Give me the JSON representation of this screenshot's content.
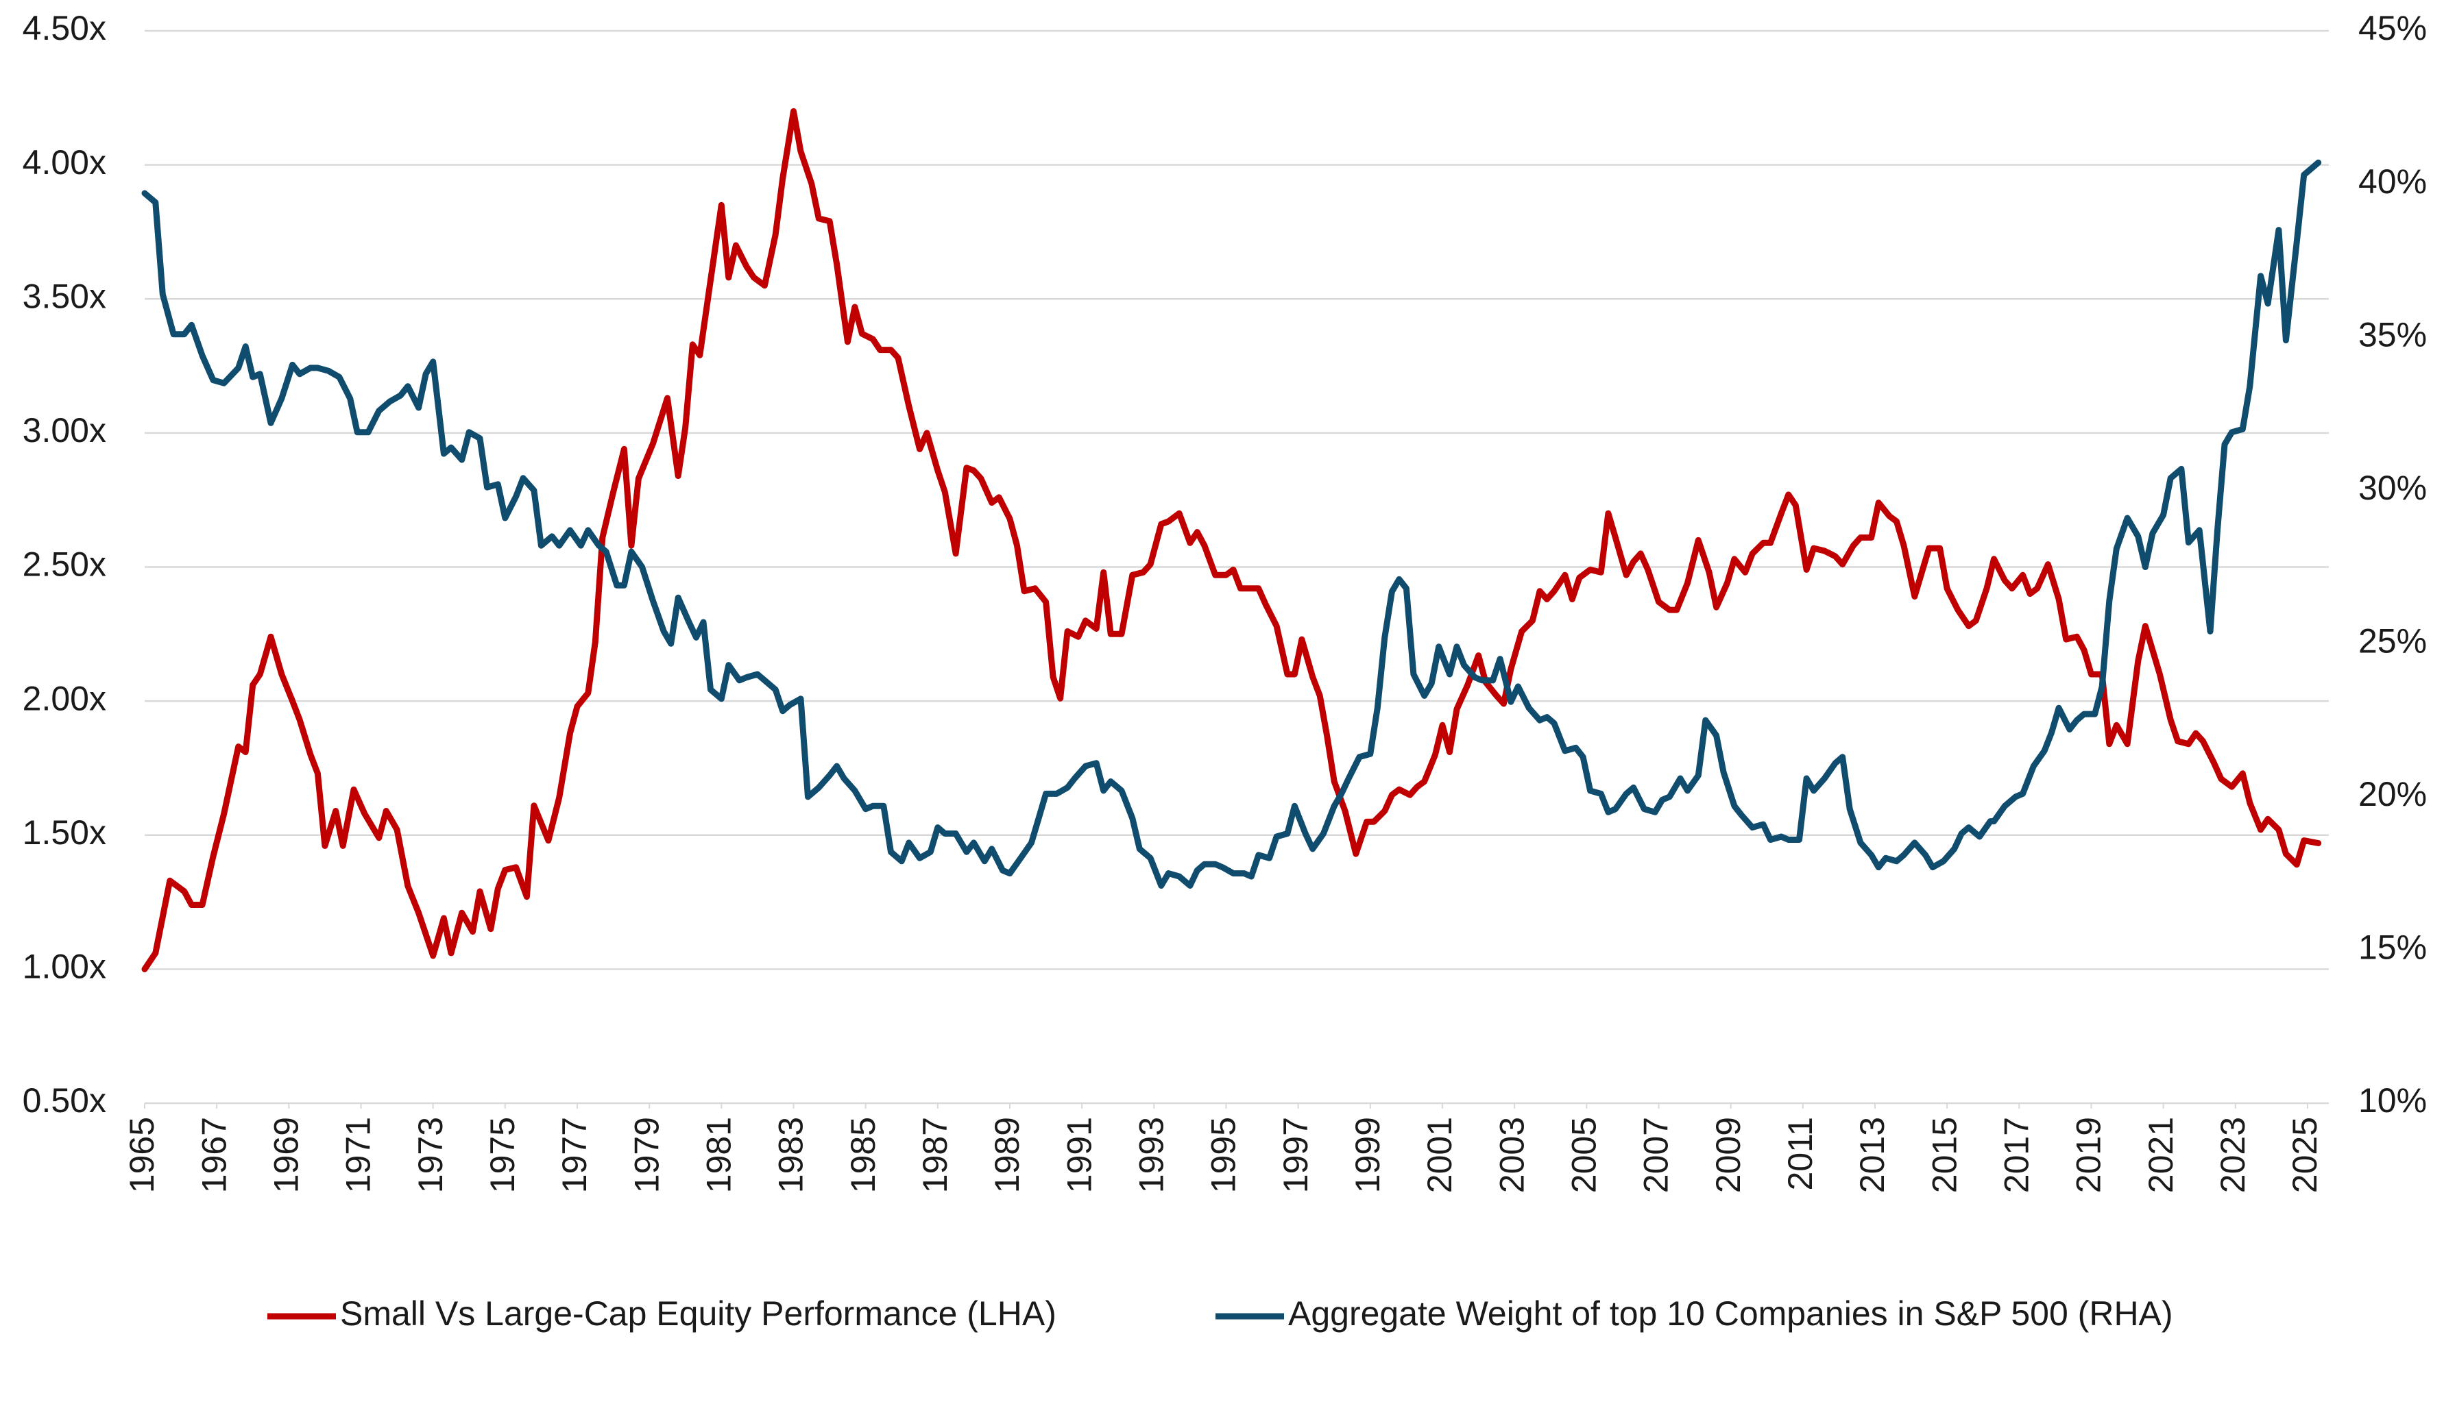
{
  "chart_data": {
    "type": "line",
    "legend": "bottom",
    "grid": true,
    "xlim": [
      1965,
      2025.4
    ],
    "xticks": [
      1965,
      1967,
      1969,
      1971,
      1973,
      1975,
      1977,
      1979,
      1981,
      1983,
      1985,
      1987,
      1989,
      1991,
      1993,
      1995,
      1997,
      1999,
      2001,
      2003,
      2005,
      2007,
      2009,
      2011,
      2013,
      2015,
      2017,
      2019,
      2021,
      2023,
      2025
    ],
    "ylim": [
      0.5,
      4.5
    ],
    "yticks": [
      {
        "value": 0.5,
        "label": "0.50x"
      },
      {
        "value": 1,
        "label": "1.00x"
      },
      {
        "value": 1.5,
        "label": "1.50x"
      },
      {
        "value": 2,
        "label": "2.00x"
      },
      {
        "value": 2.5,
        "label": "2.50x"
      },
      {
        "value": 3,
        "label": "3.00x"
      },
      {
        "value": 3.5,
        "label": "3.50x"
      },
      {
        "value": 4,
        "label": "4.00x"
      },
      {
        "value": 4.5,
        "label": "4.50x"
      }
    ],
    "y2lim": [
      10,
      45
    ],
    "y2ticks": [
      {
        "value": 10,
        "label": "10%"
      },
      {
        "value": 15,
        "label": "15%"
      },
      {
        "value": 20,
        "label": "20%"
      },
      {
        "value": 25,
        "label": "25%"
      },
      {
        "value": 30,
        "label": "30%"
      },
      {
        "value": 35,
        "label": "35%"
      },
      {
        "value": 40,
        "label": "40%"
      },
      {
        "value": 45,
        "label": "45%"
      }
    ],
    "series": [
      {
        "name": "Small Vs Large-Cap Equity Performance (LHA)",
        "color": "#c00000",
        "axis": "y",
        "x": [
          1965.0,
          1965.3,
          1965.7,
          1966.1,
          1966.3,
          1966.6,
          1966.9,
          1967.2,
          1967.6,
          1967.8,
          1968.0,
          1968.2,
          1968.5,
          1968.8,
          1969.1,
          1969.3,
          1969.6,
          1969.8,
          1970.0,
          1970.3,
          1970.5,
          1970.8,
          1971.1,
          1971.5,
          1971.7,
          1972.0,
          1972.3,
          1972.6,
          1973.0,
          1973.3,
          1973.5,
          1973.8,
          1974.1,
          1974.3,
          1974.6,
          1974.8,
          1975.0,
          1975.3,
          1975.6,
          1975.8,
          1976.2,
          1976.5,
          1976.8,
          1977.0,
          1977.3,
          1977.5,
          1977.7,
          1978.0,
          1978.3,
          1978.5,
          1978.7,
          1979.1,
          1979.5,
          1979.8,
          1980.0,
          1980.2,
          1980.4,
          1980.7,
          1981.0,
          1981.2,
          1981.4,
          1981.7,
          1981.9,
          1982.2,
          1982.5,
          1982.7,
          1983.0,
          1983.2,
          1983.5,
          1983.7,
          1984.0,
          1984.2,
          1984.5,
          1984.7,
          1984.9,
          1985.2,
          1985.4,
          1985.7,
          1985.9,
          1986.2,
          1986.5,
          1986.7,
          1987.0,
          1987.2,
          1987.5,
          1987.8,
          1988.0,
          1988.2,
          1988.5,
          1988.7,
          1989.0,
          1989.2,
          1989.4,
          1989.7,
          1990.0,
          1990.2,
          1990.4,
          1990.6,
          1990.9,
          1991.1,
          1991.4,
          1991.6,
          1991.8,
          1992.1,
          1992.4,
          1992.7,
          1992.9,
          1993.2,
          1993.4,
          1993.7,
          1994.0,
          1994.2,
          1994.4,
          1994.7,
          1995.0,
          1995.2,
          1995.4,
          1995.7,
          1995.9,
          1996.1,
          1996.4,
          1996.7,
          1996.9,
          1997.1,
          1997.4,
          1997.6,
          1997.8,
          1998.0,
          1998.3,
          1998.6,
          1998.9,
          1999.1,
          1999.4,
          1999.6,
          1999.8,
          2000.1,
          2000.3,
          2000.5,
          2000.8,
          2001.0,
          2001.2,
          2001.4,
          2001.7,
          2002.0,
          2002.2,
          2002.5,
          2002.7,
          2002.9,
          2003.2,
          2003.5,
          2003.7,
          2003.9,
          2004.1,
          2004.4,
          2004.6,
          2004.8,
          2005.1,
          2005.4,
          2005.6,
          2005.8,
          2006.1,
          2006.3,
          2006.5,
          2006.7,
          2007.0,
          2007.3,
          2007.5,
          2007.8,
          2008.1,
          2008.4,
          2008.6,
          2008.9,
          2009.1,
          2009.4,
          2009.6,
          2009.9,
          2010.1,
          2010.4,
          2010.6,
          2010.8,
          2011.1,
          2011.3,
          2011.6,
          2011.9,
          2012.1,
          2012.4,
          2012.6,
          2012.9,
          2013.1,
          2013.4,
          2013.6,
          2013.8,
          2014.1,
          2014.3,
          2014.5,
          2014.8,
          2015.0,
          2015.3,
          2015.6,
          2015.8,
          2016.1,
          2016.3,
          2016.6,
          2016.8,
          2017.1,
          2017.3,
          2017.5,
          2017.8,
          2018.1,
          2018.3,
          2018.6,
          2018.8,
          2019.0,
          2019.3,
          2019.5,
          2019.7,
          2020.0,
          2020.3,
          2020.5,
          2020.7,
          2020.9,
          2021.2,
          2021.4,
          2021.7,
          2021.9,
          2022.1,
          2022.4,
          2022.6,
          2022.9,
          2023.2,
          2023.4,
          2023.7,
          2023.9,
          2024.2,
          2024.4,
          2024.7,
          2024.9,
          2025.3
        ],
        "values": [
          1.0,
          1.06,
          1.33,
          1.29,
          1.24,
          1.24,
          1.42,
          1.58,
          1.83,
          1.81,
          2.06,
          2.1,
          2.24,
          2.1,
          2.0,
          1.93,
          1.8,
          1.73,
          1.46,
          1.59,
          1.46,
          1.67,
          1.58,
          1.49,
          1.59,
          1.52,
          1.31,
          1.21,
          1.05,
          1.19,
          1.06,
          1.21,
          1.14,
          1.29,
          1.15,
          1.3,
          1.37,
          1.38,
          1.27,
          1.61,
          1.48,
          1.64,
          1.88,
          1.98,
          2.03,
          2.22,
          2.61,
          2.78,
          2.94,
          2.58,
          2.83,
          2.96,
          3.13,
          2.84,
          3.02,
          3.33,
          3.29,
          3.57,
          3.85,
          3.58,
          3.7,
          3.62,
          3.58,
          3.55,
          3.74,
          3.95,
          4.2,
          4.05,
          3.93,
          3.8,
          3.79,
          3.63,
          3.34,
          3.47,
          3.37,
          3.35,
          3.31,
          3.31,
          3.28,
          3.1,
          2.94,
          3.0,
          2.86,
          2.78,
          2.55,
          2.87,
          2.86,
          2.83,
          2.74,
          2.76,
          2.68,
          2.58,
          2.41,
          2.42,
          2.37,
          2.09,
          2.01,
          2.26,
          2.24,
          2.3,
          2.27,
          2.48,
          2.25,
          2.25,
          2.47,
          2.48,
          2.51,
          2.66,
          2.67,
          2.7,
          2.59,
          2.63,
          2.58,
          2.47,
          2.47,
          2.49,
          2.42,
          2.42,
          2.42,
          2.36,
          2.28,
          2.1,
          2.1,
          2.23,
          2.09,
          2.02,
          1.87,
          1.7,
          1.59,
          1.43,
          1.55,
          1.55,
          1.59,
          1.65,
          1.67,
          1.65,
          1.68,
          1.7,
          1.8,
          1.91,
          1.81,
          1.97,
          2.06,
          2.17,
          2.07,
          2.02,
          1.99,
          2.12,
          2.26,
          2.3,
          2.41,
          2.38,
          2.41,
          2.47,
          2.38,
          2.46,
          2.49,
          2.48,
          2.7,
          2.61,
          2.47,
          2.52,
          2.55,
          2.49,
          2.37,
          2.34,
          2.34,
          2.44,
          2.6,
          2.48,
          2.35,
          2.44,
          2.53,
          2.48,
          2.55,
          2.59,
          2.59,
          2.7,
          2.77,
          2.73,
          2.49,
          2.57,
          2.56,
          2.54,
          2.51,
          2.58,
          2.61,
          2.61,
          2.74,
          2.69,
          2.67,
          2.58,
          2.39,
          2.48,
          2.57,
          2.57,
          2.42,
          2.34,
          2.28,
          2.3,
          2.42,
          2.53,
          2.45,
          2.42,
          2.47,
          2.4,
          2.42,
          2.51,
          2.38,
          2.23,
          2.24,
          2.19,
          2.1,
          2.1,
          1.84,
          1.91,
          1.84,
          2.15,
          2.28,
          2.19,
          2.1,
          1.93,
          1.85,
          1.84,
          1.88,
          1.85,
          1.77,
          1.71,
          1.68,
          1.73,
          1.62,
          1.52,
          1.56,
          1.52,
          1.43,
          1.39,
          1.48,
          1.47
        ]
      },
      {
        "name": "Aggregate Weight of top 10 Companies in S&P 500 (RHA)",
        "color": "#0f4c6e",
        "axis": "y2",
        "x": [
          1965.0,
          1965.3,
          1965.5,
          1965.8,
          1966.1,
          1966.3,
          1966.6,
          1966.9,
          1967.2,
          1967.6,
          1967.8,
          1968.0,
          1968.2,
          1968.5,
          1968.8,
          1969.1,
          1969.3,
          1969.6,
          1969.8,
          1970.1,
          1970.4,
          1970.7,
          1970.9,
          1971.2,
          1971.5,
          1971.8,
          1972.1,
          1972.3,
          1972.6,
          1972.8,
          1973.0,
          1973.3,
          1973.5,
          1973.8,
          1974.0,
          1974.3,
          1974.5,
          1974.8,
          1975.0,
          1975.3,
          1975.5,
          1975.8,
          1976.0,
          1976.3,
          1976.5,
          1976.8,
          1977.1,
          1977.3,
          1977.6,
          1977.8,
          1978.1,
          1978.3,
          1978.5,
          1978.8,
          1979.1,
          1979.4,
          1979.6,
          1979.8,
          1980.1,
          1980.3,
          1980.5,
          1980.7,
          1981.0,
          1981.2,
          1981.5,
          1981.7,
          1982.0,
          1982.2,
          1982.5,
          1982.7,
          1982.9,
          1983.2,
          1983.4,
          1983.7,
          1984.0,
          1984.2,
          1984.4,
          1984.7,
          1985.0,
          1985.2,
          1985.5,
          1985.7,
          1986.0,
          1986.2,
          1986.5,
          1986.8,
          1987.0,
          1987.2,
          1987.5,
          1987.8,
          1988.0,
          1988.3,
          1988.5,
          1988.8,
          1989.0,
          1989.3,
          1989.6,
          1989.8,
          1990.0,
          1990.3,
          1990.6,
          1990.8,
          1991.1,
          1991.4,
          1991.6,
          1991.8,
          1992.1,
          1992.4,
          1992.6,
          1992.9,
          1993.2,
          1993.4,
          1993.7,
          1994.0,
          1994.2,
          1994.4,
          1994.7,
          1994.9,
          1995.2,
          1995.5,
          1995.7,
          1995.9,
          1996.2,
          1996.4,
          1996.7,
          1996.9,
          1997.2,
          1997.4,
          1997.7,
          1998.0,
          1998.2,
          1998.4,
          1998.7,
          1999.0,
          1999.2,
          1999.4,
          1999.6,
          1999.8,
          2000.0,
          2000.2,
          2000.5,
          2000.7,
          2000.9,
          2001.2,
          2001.4,
          2001.6,
          2001.9,
          2002.1,
          2002.4,
          2002.6,
          2002.9,
          2003.1,
          2003.4,
          2003.7,
          2003.9,
          2004.1,
          2004.4,
          2004.7,
          2004.9,
          2005.1,
          2005.4,
          2005.6,
          2005.8,
          2006.1,
          2006.3,
          2006.6,
          2006.9,
          2007.1,
          2007.3,
          2007.6,
          2007.8,
          2008.1,
          2008.3,
          2008.6,
          2008.8,
          2009.1,
          2009.3,
          2009.6,
          2009.9,
          2010.1,
          2010.4,
          2010.6,
          2010.9,
          2011.1,
          2011.3,
          2011.6,
          2011.9,
          2012.1,
          2012.3,
          2012.6,
          2012.9,
          2013.1,
          2013.3,
          2013.6,
          2013.8,
          2014.1,
          2014.4,
          2014.6,
          2014.9,
          2015.2,
          2015.4,
          2015.6,
          2015.9,
          2016.2,
          2016.3,
          2016.6,
          2016.9,
          2017.1,
          2017.4,
          2017.7,
          2017.9,
          2018.1,
          2018.4,
          2018.6,
          2018.8,
          2019.1,
          2019.3,
          2019.5,
          2019.7,
          2020.0,
          2020.3,
          2020.5,
          2020.7,
          2021.0,
          2021.2,
          2021.5,
          2021.7,
          2022.0,
          2022.3,
          2022.5,
          2022.7,
          2022.9,
          2023.2,
          2023.4,
          2023.7,
          2023.9,
          2024.2,
          2024.4,
          2024.7,
          2024.9,
          2025.3
        ],
        "values": [
          39.7,
          39.4,
          36.4,
          35.1,
          35.1,
          35.4,
          34.4,
          33.6,
          33.5,
          34.0,
          34.7,
          33.7,
          33.8,
          32.2,
          33.0,
          34.1,
          33.8,
          34.0,
          34.0,
          33.9,
          33.7,
          33.0,
          31.9,
          31.9,
          32.6,
          32.9,
          33.1,
          33.4,
          32.7,
          33.8,
          34.2,
          31.2,
          31.4,
          31.0,
          31.9,
          31.7,
          30.1,
          30.2,
          29.1,
          29.8,
          30.4,
          30.0,
          28.2,
          28.5,
          28.2,
          28.7,
          28.2,
          28.7,
          28.2,
          28.0,
          26.9,
          26.9,
          28.0,
          27.5,
          26.4,
          25.4,
          25.0,
          26.5,
          25.7,
          25.2,
          25.7,
          23.5,
          23.2,
          24.3,
          23.8,
          23.9,
          24.0,
          23.8,
          23.5,
          22.8,
          23.0,
          23.2,
          20.0,
          20.3,
          20.7,
          21.0,
          20.6,
          20.2,
          19.6,
          19.7,
          19.7,
          18.2,
          17.9,
          18.5,
          18.0,
          18.2,
          19.0,
          18.8,
          18.8,
          18.2,
          18.5,
          17.9,
          18.3,
          17.6,
          17.5,
          18.0,
          18.5,
          19.3,
          20.1,
          20.1,
          20.3,
          20.6,
          21.0,
          21.1,
          20.2,
          20.5,
          20.2,
          19.3,
          18.3,
          18.0,
          17.1,
          17.5,
          17.4,
          17.1,
          17.6,
          17.8,
          17.8,
          17.7,
          17.5,
          17.5,
          17.4,
          18.1,
          18.0,
          18.7,
          18.8,
          19.7,
          18.8,
          18.3,
          18.8,
          19.7,
          20.1,
          20.6,
          21.3,
          21.4,
          22.9,
          25.2,
          26.7,
          27.1,
          26.8,
          24.0,
          23.3,
          23.7,
          24.9,
          24.0,
          24.9,
          24.3,
          23.9,
          23.8,
          23.8,
          24.5,
          23.1,
          23.6,
          22.9,
          22.5,
          22.6,
          22.4,
          21.5,
          21.6,
          21.3,
          20.2,
          20.1,
          19.5,
          19.6,
          20.1,
          20.3,
          19.6,
          19.5,
          19.9,
          20.0,
          20.6,
          20.2,
          20.7,
          22.5,
          22.0,
          20.8,
          19.7,
          19.4,
          19.0,
          19.1,
          18.6,
          18.7,
          18.6,
          18.6,
          20.6,
          20.2,
          20.6,
          21.1,
          21.3,
          19.6,
          18.5,
          18.1,
          17.7,
          18.0,
          17.9,
          18.1,
          18.5,
          18.1,
          17.7,
          17.9,
          18.3,
          18.8,
          19.0,
          18.7,
          19.2,
          19.2,
          19.7,
          20.0,
          20.1,
          21.0,
          21.5,
          22.1,
          22.9,
          22.2,
          22.5,
          22.7,
          22.7,
          23.6,
          26.4,
          28.1,
          29.1,
          28.5,
          27.5,
          28.6,
          29.2,
          30.4,
          30.7,
          28.3,
          28.7,
          25.4,
          28.7,
          31.5,
          31.9,
          32.0,
          33.4,
          37.0,
          36.1,
          38.5,
          34.9,
          38.1,
          40.3,
          40.7
        ]
      }
    ]
  }
}
